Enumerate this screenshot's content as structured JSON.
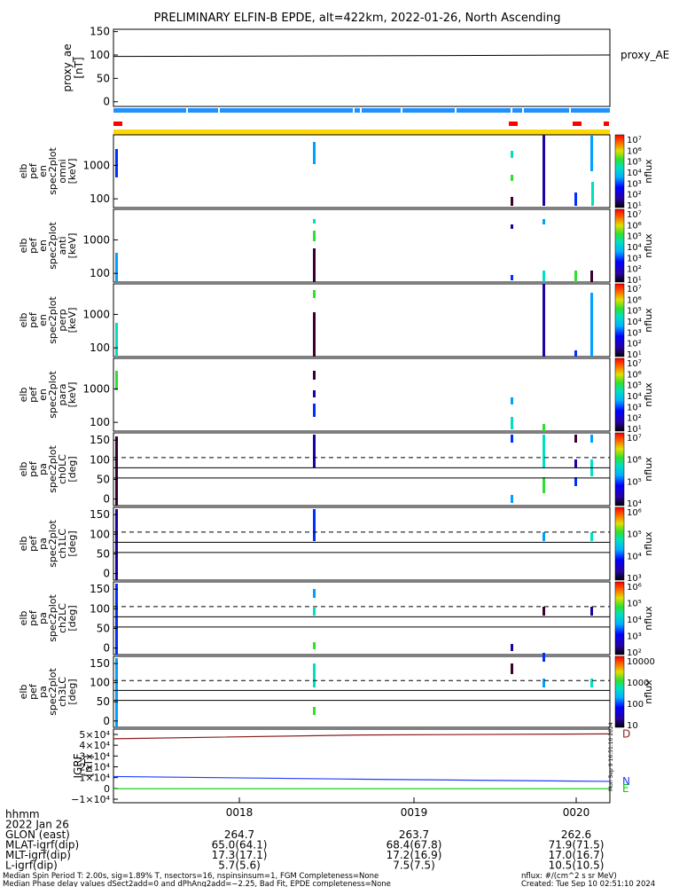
{
  "title": "PRELIMINARY ELFIN-B EPDE, alt=422km, 2022-01-26, North Ascending",
  "colors": {
    "ae_line": "#000000",
    "status_bar": "#1e90ff",
    "fill_bar": "#ffd700",
    "red_marks": "#ff0000",
    "brown_line": "#8b1a1a",
    "blue_line": "#1e3cff",
    "green_line": "#00cc00"
  },
  "chart_data": [
    {
      "type": "line",
      "panel": "proxy_ae",
      "ylabel": [
        "proxy_ae",
        "[nT]"
      ],
      "legend": "proxy_AE",
      "ylim": [
        -10,
        155
      ],
      "yticks": [
        "0",
        "50",
        "100",
        "150"
      ],
      "ytick_values": [
        0,
        50,
        100,
        150
      ],
      "series": [
        {
          "x": [
            0,
            0.45,
            1
          ],
          "y": [
            97,
            98,
            100
          ]
        }
      ]
    },
    {
      "type": "heatmap",
      "panel": "en_omni",
      "ylabel": [
        "elb",
        "pef",
        "en",
        "spec2plot",
        "omni",
        "[keV]"
      ],
      "yticks": [
        "1000",
        "100"
      ],
      "cbar_label": "nflux",
      "cbar_ticks": [
        "10⁷",
        "10⁶",
        "10⁵",
        "10⁴",
        "10³",
        "10²",
        "10¹"
      ]
    },
    {
      "type": "heatmap",
      "panel": "en_anti",
      "ylabel": [
        "elb",
        "pef",
        "en",
        "spec2plot",
        "anti",
        "[keV]"
      ],
      "yticks": [
        "1000",
        "100"
      ],
      "cbar_label": "nflux",
      "cbar_ticks": [
        "10⁷",
        "10⁶",
        "10⁵",
        "10⁴",
        "10³",
        "10²",
        "10¹"
      ]
    },
    {
      "type": "heatmap",
      "panel": "en_perp",
      "ylabel": [
        "elb",
        "pef",
        "en",
        "spec2plot",
        "perp",
        "[keV]"
      ],
      "yticks": [
        "1000",
        "100"
      ],
      "cbar_label": "nflux",
      "cbar_ticks": [
        "10⁷",
        "10⁶",
        "10⁵",
        "10⁴",
        "10³",
        "10²",
        "10¹"
      ]
    },
    {
      "type": "heatmap",
      "panel": "en_para",
      "ylabel": [
        "elb",
        "pef",
        "en",
        "spec2plot",
        "para",
        "[keV]"
      ],
      "yticks": [
        "1000",
        "100"
      ],
      "cbar_label": "nflux",
      "cbar_ticks": [
        "10⁷",
        "10⁶",
        "10⁵",
        "10⁴",
        "10³",
        "10²",
        "10¹"
      ]
    },
    {
      "type": "heatmap",
      "panel": "pa_ch0LC",
      "ylabel": [
        "elb",
        "pef",
        "pa",
        "spec2plot",
        "ch0LC",
        "[deg]"
      ],
      "yticks": [
        "150",
        "100",
        "50",
        "0"
      ],
      "cbar_label": "nflux",
      "cbar_ticks": [
        "10⁷",
        "10⁶",
        "10⁵",
        "10⁴"
      ]
    },
    {
      "type": "heatmap",
      "panel": "pa_ch1LC",
      "ylabel": [
        "elb",
        "pef",
        "pa",
        "spec2plot",
        "ch1LC",
        "[deg]"
      ],
      "yticks": [
        "150",
        "100",
        "50",
        "0"
      ],
      "cbar_label": "nflux",
      "cbar_ticks": [
        "10⁶",
        "10⁵",
        "10⁴",
        "10³"
      ]
    },
    {
      "type": "heatmap",
      "panel": "pa_ch2LC",
      "ylabel": [
        "elb",
        "pef",
        "pa",
        "spec2plot",
        "ch2LC",
        "[deg]"
      ],
      "yticks": [
        "150",
        "100",
        "50",
        "0"
      ],
      "cbar_label": "nflux",
      "cbar_ticks": [
        "10⁶",
        "10⁵",
        "10⁴",
        "10³",
        "10²"
      ]
    },
    {
      "type": "heatmap",
      "panel": "pa_ch3LC",
      "ylabel": [
        "elb",
        "pef",
        "pa",
        "spec2plot",
        "ch3LC",
        "[deg]"
      ],
      "yticks": [
        "150",
        "100",
        "50",
        "0"
      ],
      "cbar_label": "nflux",
      "cbar_ticks": [
        "10000",
        "1000",
        "100",
        "10"
      ]
    },
    {
      "type": "line",
      "panel": "igrf",
      "ylabel": [
        "IGRF",
        "[nT]"
      ],
      "yticks": [
        "5×10⁴",
        "4×10⁴",
        "3×10⁴",
        "2×10⁴",
        "1×10⁴",
        "0",
        "−1×10⁴"
      ],
      "legend": [
        "D",
        "N",
        "E"
      ],
      "series": [
        {
          "name": "D",
          "y": [
            46000,
            49500,
            50500
          ]
        },
        {
          "name": "N",
          "y": [
            11000,
            8500,
            6500
          ]
        },
        {
          "name": "E",
          "y": [
            -300,
            -300,
            -300
          ]
        }
      ]
    }
  ],
  "x_axis": {
    "tick_labels": [
      "0018",
      "0019",
      "0020"
    ]
  },
  "bottom_rows": [
    {
      "label": "hhmm",
      "values": [
        "",
        "",
        ""
      ]
    },
    {
      "label": "2022 Jan 26",
      "values": [
        "",
        "",
        ""
      ]
    },
    {
      "label": "GLON (east)",
      "values": [
        "264.7",
        "263.7",
        "262.6"
      ]
    },
    {
      "label": "MLAT-igrf(dip)",
      "values": [
        "65.0(64.1)",
        "68.4(67.8)",
        "71.9(71.5)"
      ]
    },
    {
      "label": "MLT-igrf(dip)",
      "values": [
        "17.3(17.1)",
        "17.2(16.9)",
        "17.0(16.7)"
      ]
    },
    {
      "label": "L-igrf(dip)",
      "values": [
        "5.7(5.6)",
        "7.5(7.5)",
        "10.5(10.5)"
      ]
    }
  ],
  "footer": {
    "line1_left": "Median Spin Period T: 2.00s, sig=1.89% T, nsectors=16, nspinsinsum=1, FGM Completeness=None",
    "line2_left": "Median Phase delay values dSect2add=0 and dPhAng2add=−2.25, Bad Fit, EPDE completeness=None",
    "line1_right": "nflux: #/(cm^2 s sr MeV)",
    "line2_right": "Created: Tue Sep 10 02:51:10 2024"
  },
  "side_stamp": "Mon Sep 9 16:51:10 2024"
}
